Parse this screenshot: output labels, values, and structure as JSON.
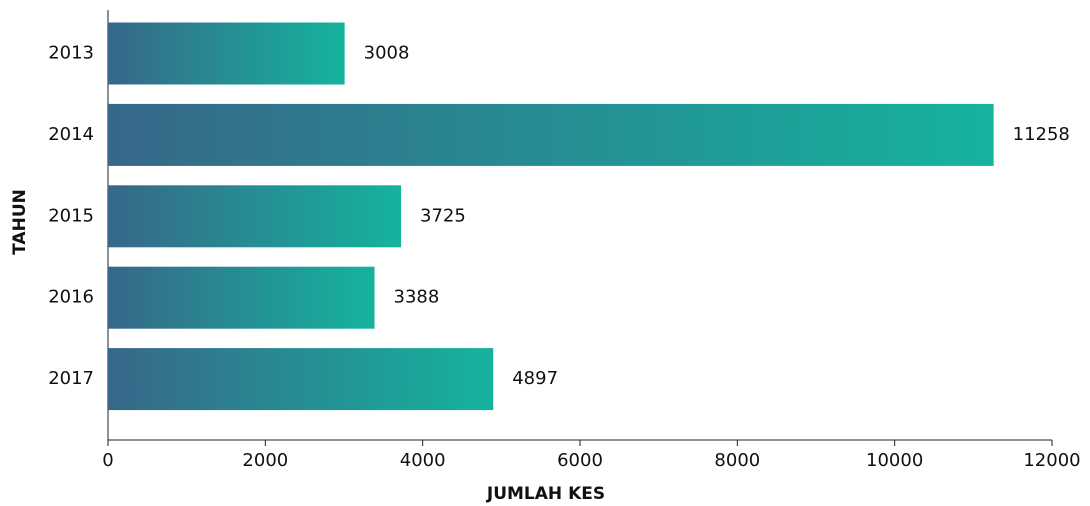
{
  "chart_data": {
    "type": "bar",
    "orientation": "horizontal",
    "xlabel": "JUMLAH KES",
    "ylabel": "TAHUN",
    "categories": [
      "2013",
      "2014",
      "2015",
      "2016",
      "2017"
    ],
    "values": [
      3008,
      11258,
      3725,
      3388,
      4897
    ],
    "gradient": [
      "#376789",
      "#15b39e"
    ],
    "xlim": [
      0,
      12000
    ],
    "xticks": [
      0,
      2000,
      4000,
      6000,
      8000,
      10000,
      12000
    ],
    "grid": false
  }
}
